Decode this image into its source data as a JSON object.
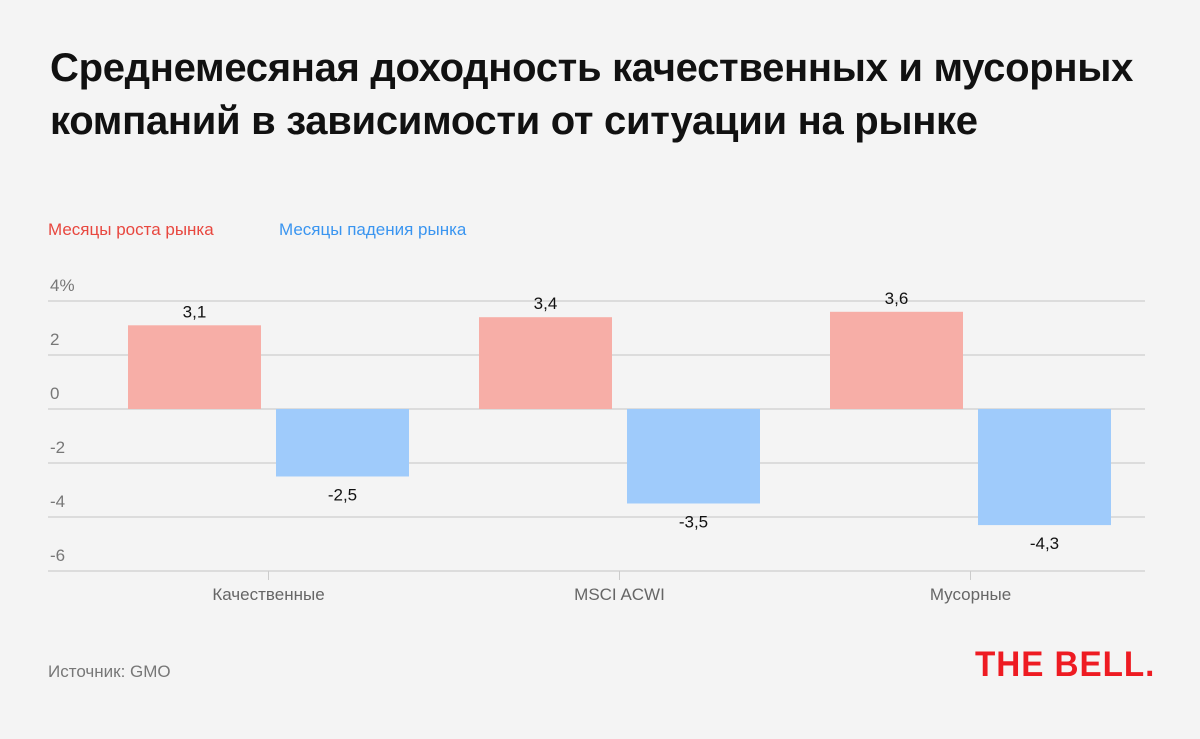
{
  "title": "Среднемесяная доходность качественных и мусорных компаний в зависимости от ситуации на рынке",
  "source": "Источник: GMO",
  "logo": "THE BELL.",
  "colors": {
    "up": "#f7aea7",
    "down": "#9fcbfb",
    "up_text": "#e8473f",
    "down_text": "#3a95f0",
    "logo": "#ee1b22"
  },
  "chart_data": {
    "type": "bar",
    "title": "Среднемесяная доходность качественных и мусорных компаний в зависимости от ситуации на рынке",
    "categories": [
      "Качественные",
      "MSCI ACWI",
      "Мусорные"
    ],
    "series": [
      {
        "name": "Месяцы роста рынка",
        "values": [
          3.1,
          3.4,
          3.6
        ],
        "labels": [
          "3,1",
          "3,4",
          "3,6"
        ]
      },
      {
        "name": "Месяцы падения рынка",
        "values": [
          -2.5,
          -3.5,
          -4.3
        ],
        "labels": [
          "-2,5",
          "-3,5",
          "-4,3"
        ]
      }
    ],
    "yticks": [
      4,
      2,
      0,
      -2,
      -4,
      -6
    ],
    "ytick_labels": [
      "4%",
      "2",
      "0",
      "-2",
      "-4",
      "-6"
    ],
    "ylim": [
      -6,
      4
    ],
    "grid": true,
    "legend": "top-left"
  }
}
